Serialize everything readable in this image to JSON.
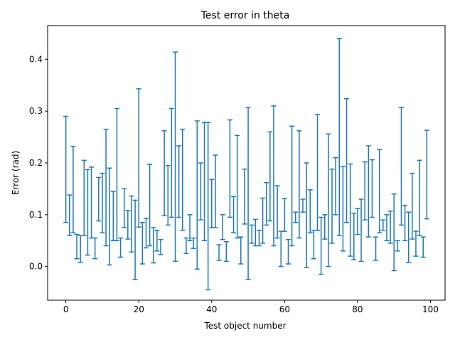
{
  "chart_data": {
    "type": "errorbar",
    "title": "Test error in theta",
    "xlabel": "Test object number",
    "ylabel": "Error (rad)",
    "xlim": [
      -5,
      104
    ],
    "ylim": [
      -0.065,
      0.465
    ],
    "xticks": [
      0,
      20,
      40,
      60,
      80,
      100
    ],
    "yticks": [
      0.0,
      0.1,
      0.2,
      0.3,
      0.4
    ],
    "ytick_labels": [
      "0.0",
      "0.1",
      "0.2",
      "0.3",
      "0.4"
    ],
    "grid": false,
    "legend": "none",
    "color": "#1f77b4",
    "series": [
      {
        "x": [
          0,
          1,
          2,
          3,
          4,
          5,
          6,
          7,
          8,
          9,
          10,
          11,
          12,
          13,
          14,
          15,
          16,
          17,
          18,
          19,
          20,
          21,
          22,
          23,
          24,
          25,
          26,
          27,
          28,
          29,
          30,
          31,
          32,
          33,
          34,
          35,
          36,
          37,
          38,
          39,
          40,
          41,
          42,
          43,
          44,
          45,
          46,
          47,
          48,
          49,
          50,
          51,
          52,
          53,
          54,
          55,
          56,
          57,
          58,
          59,
          60,
          61,
          62,
          63,
          64,
          65,
          66,
          67,
          68,
          69,
          70,
          71,
          72,
          73,
          74,
          75,
          76,
          77,
          78,
          79,
          80,
          81,
          82,
          83,
          84,
          85,
          86,
          87,
          88,
          89,
          90,
          91,
          92,
          93,
          94,
          95,
          96,
          97,
          98,
          99
        ],
        "y_low": [
          0.085,
          0.06,
          0.065,
          0.015,
          0.008,
          0.06,
          0.022,
          0.055,
          0.015,
          0.088,
          0.065,
          0.04,
          0.003,
          0.05,
          0.05,
          0.018,
          0.075,
          0.053,
          0.028,
          -0.025,
          0.076,
          0.005,
          0.036,
          0.04,
          0.007,
          0.07,
          0.023,
          0.098,
          0.08,
          0.095,
          0.01,
          0.095,
          0.07,
          0.025,
          0.05,
          0.035,
          -0.005,
          0.09,
          0.05,
          -0.045,
          0.075,
          0.075,
          0.012,
          0.052,
          0.01,
          0.095,
          0.065,
          0.055,
          0.005,
          0.082,
          -0.025,
          0.045,
          0.04,
          0.04,
          0.045,
          0.08,
          0.088,
          0.04,
          0.055,
          0.0,
          0.068,
          0.005,
          0.04,
          0.085,
          0.055,
          0.105,
          -0.002,
          0.065,
          0.015,
          0.07,
          -0.015,
          0.1,
          0.0,
          0.045,
          0.1,
          0.06,
          0.03,
          0.085,
          0.02,
          0.013,
          0.062,
          0.01,
          0.09,
          0.057,
          0.095,
          0.012,
          0.065,
          0.09,
          0.05,
          0.045,
          -0.008,
          0.03,
          0.08,
          0.05,
          0.008,
          0.053,
          0.02,
          0.06,
          0.018,
          0.092
        ],
        "y_high": [
          0.29,
          0.138,
          0.232,
          0.062,
          0.06,
          0.205,
          0.187,
          0.192,
          0.055,
          0.172,
          0.18,
          0.265,
          0.19,
          0.145,
          0.305,
          0.055,
          0.15,
          0.108,
          0.136,
          0.128,
          0.343,
          0.085,
          0.093,
          0.197,
          0.075,
          0.03,
          0.052,
          0.262,
          0.195,
          0.305,
          0.414,
          0.233,
          0.265,
          0.055,
          0.1,
          0.055,
          0.281,
          0.2,
          0.278,
          0.278,
          0.168,
          0.215,
          0.042,
          0.1,
          0.048,
          0.283,
          0.135,
          0.253,
          0.057,
          0.188,
          0.307,
          0.08,
          0.091,
          0.07,
          0.132,
          0.162,
          0.26,
          0.31,
          0.156,
          0.068,
          0.131,
          0.052,
          0.271,
          0.105,
          0.262,
          0.13,
          0.2,
          0.148,
          0.07,
          0.293,
          0.095,
          0.053,
          0.256,
          0.188,
          0.21,
          0.44,
          0.193,
          0.324,
          0.198,
          0.103,
          0.112,
          0.13,
          0.202,
          0.233,
          0.206,
          0.057,
          0.226,
          0.07,
          0.1,
          0.107,
          0.14,
          0.05,
          0.307,
          0.118,
          0.105,
          0.18,
          0.068,
          0.205,
          0.057,
          0.263
        ]
      }
    ]
  }
}
